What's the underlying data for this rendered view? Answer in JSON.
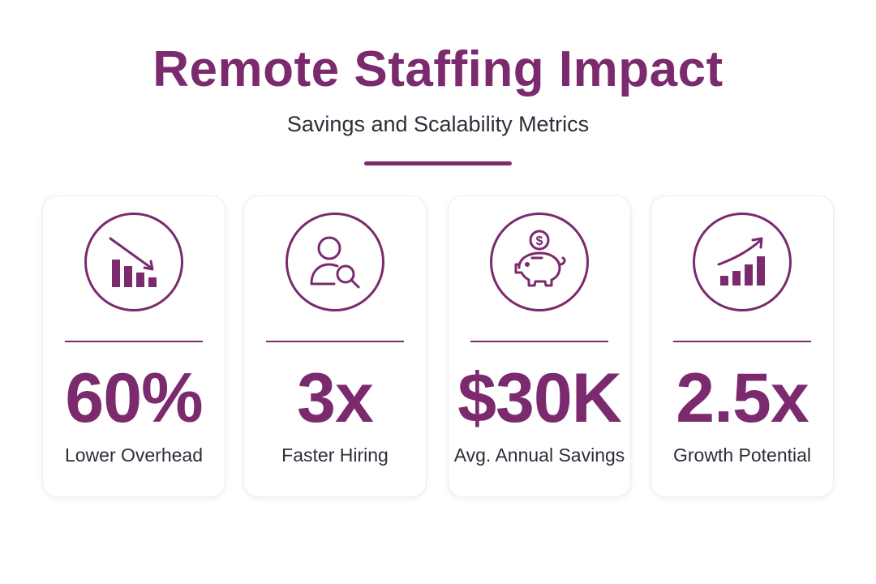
{
  "header": {
    "title": "Remote Staffing Impact",
    "subtitle": "Savings and Scalability Metrics"
  },
  "colors": {
    "accent": "#7b2a6e",
    "text": "#2b2f38"
  },
  "metrics": [
    {
      "icon": "falling-bar-chart-icon",
      "value": "60%",
      "label": "Lower Overhead"
    },
    {
      "icon": "user-search-icon",
      "value": "3x",
      "label": "Faster Hiring"
    },
    {
      "icon": "piggy-bank-icon",
      "value": "$30K",
      "label": "Avg. Annual Savings",
      "icon_glyph": "$"
    },
    {
      "icon": "rising-bar-chart-icon",
      "value": "2.5x",
      "label": "Growth Potential"
    }
  ]
}
